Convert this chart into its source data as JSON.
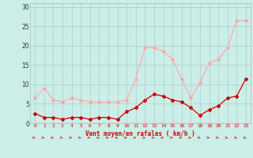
{
  "hours": [
    0,
    1,
    2,
    3,
    4,
    5,
    6,
    7,
    8,
    9,
    10,
    11,
    12,
    13,
    14,
    15,
    16,
    17,
    18,
    19,
    20,
    21,
    22,
    23
  ],
  "wind_avg": [
    2.5,
    1.5,
    1.5,
    1.0,
    1.5,
    1.5,
    1.0,
    1.5,
    1.5,
    1.0,
    3.0,
    4.0,
    6.0,
    7.5,
    7.0,
    6.0,
    5.5,
    4.0,
    2.0,
    3.5,
    4.5,
    6.5,
    7.0,
    11.5
  ],
  "wind_gust": [
    6.5,
    9.0,
    6.0,
    5.5,
    6.5,
    6.0,
    5.5,
    5.5,
    5.5,
    5.5,
    6.0,
    11.5,
    19.5,
    19.5,
    18.5,
    16.5,
    11.5,
    6.5,
    10.5,
    15.5,
    16.5,
    19.5,
    26.5,
    26.5
  ],
  "avg_color": "#cc0000",
  "gust_color": "#ffaaaa",
  "background_color": "#cceee8",
  "grid_color": "#aacccc",
  "yticks": [
    0,
    5,
    10,
    15,
    20,
    25,
    30
  ],
  "ylim": [
    0,
    31
  ],
  "xlim": [
    -0.5,
    23.5
  ],
  "xlabel": "Vent moyen/en rafales ( km/h )",
  "xlabel_color": "#cc0000",
  "tick_color": "#cc0000",
  "ytick_color": "#333333"
}
